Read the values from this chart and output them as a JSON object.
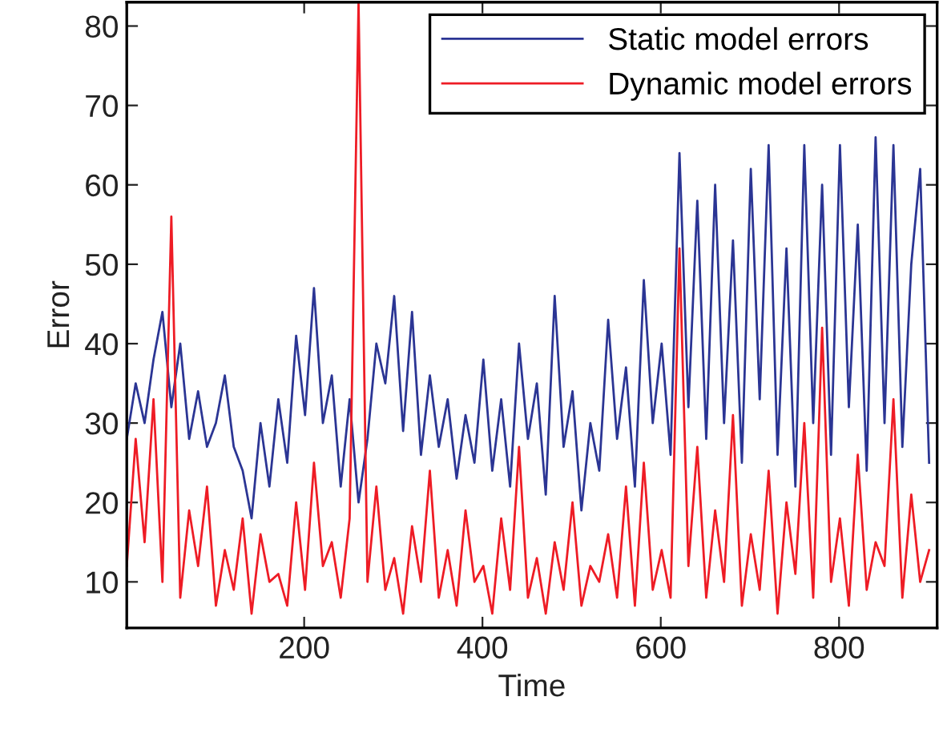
{
  "chart_data": {
    "type": "line",
    "xlabel": "Time",
    "ylabel": "Error",
    "x": [
      1,
      11,
      21,
      31,
      41,
      51,
      61,
      71,
      81,
      91,
      101,
      111,
      121,
      131,
      141,
      151,
      161,
      171,
      181,
      191,
      201,
      211,
      221,
      231,
      241,
      251,
      261,
      271,
      281,
      291,
      301,
      311,
      321,
      331,
      341,
      351,
      361,
      371,
      381,
      391,
      401,
      411,
      421,
      431,
      441,
      451,
      461,
      471,
      481,
      491,
      501,
      511,
      521,
      531,
      541,
      551,
      561,
      571,
      581,
      591,
      601,
      611,
      621,
      631,
      641,
      651,
      661,
      671,
      681,
      691,
      701,
      711,
      721,
      731,
      741,
      751,
      761,
      771,
      781,
      791,
      801,
      811,
      821,
      831,
      841,
      851,
      861,
      871,
      881,
      891,
      901
    ],
    "series": [
      {
        "name": "Static model errors",
        "color": "#2b3594",
        "values": [
          28,
          35,
          30,
          38,
          44,
          32,
          40,
          28,
          34,
          27,
          30,
          36,
          27,
          24,
          18,
          30,
          22,
          33,
          25,
          41,
          31,
          47,
          30,
          36,
          22,
          33,
          20,
          28,
          40,
          35,
          46,
          29,
          44,
          26,
          36,
          27,
          33,
          23,
          31,
          25,
          38,
          24,
          33,
          22,
          40,
          28,
          35,
          21,
          46,
          27,
          34,
          19,
          30,
          24,
          43,
          28,
          37,
          22,
          48,
          30,
          40,
          26,
          64,
          32,
          58,
          28,
          60,
          30,
          53,
          25,
          62,
          33,
          65,
          26,
          52,
          22,
          65,
          30,
          60,
          26,
          65,
          32,
          55,
          24,
          66,
          30,
          65,
          27,
          50,
          62,
          25
        ]
      },
      {
        "name": "Dynamic model errors",
        "color": "#ee1c25",
        "values": [
          12,
          28,
          15,
          33,
          10,
          56,
          8,
          19,
          12,
          22,
          7,
          14,
          9,
          18,
          6,
          16,
          10,
          11,
          7,
          20,
          9,
          25,
          12,
          15,
          8,
          18,
          83,
          10,
          22,
          9,
          13,
          6,
          17,
          10,
          24,
          8,
          14,
          7,
          19,
          10,
          12,
          6,
          18,
          9,
          27,
          8,
          13,
          6,
          15,
          9,
          20,
          7,
          12,
          10,
          16,
          8,
          22,
          7,
          25,
          9,
          14,
          8,
          52,
          12,
          27,
          8,
          19,
          10,
          31,
          7,
          16,
          9,
          24,
          6,
          20,
          11,
          30,
          8,
          42,
          10,
          18,
          7,
          26,
          9,
          15,
          12,
          33,
          8,
          21,
          10,
          14
        ]
      }
    ],
    "xlim": [
      1,
      910
    ],
    "ylim": [
      4.2,
      83
    ],
    "xticks": [
      200,
      400,
      600,
      800
    ],
    "yticks": [
      10,
      20,
      30,
      40,
      50,
      60,
      70,
      80
    ],
    "grid": false,
    "legend": "top right",
    "line_style": "solid",
    "marker": "none"
  }
}
